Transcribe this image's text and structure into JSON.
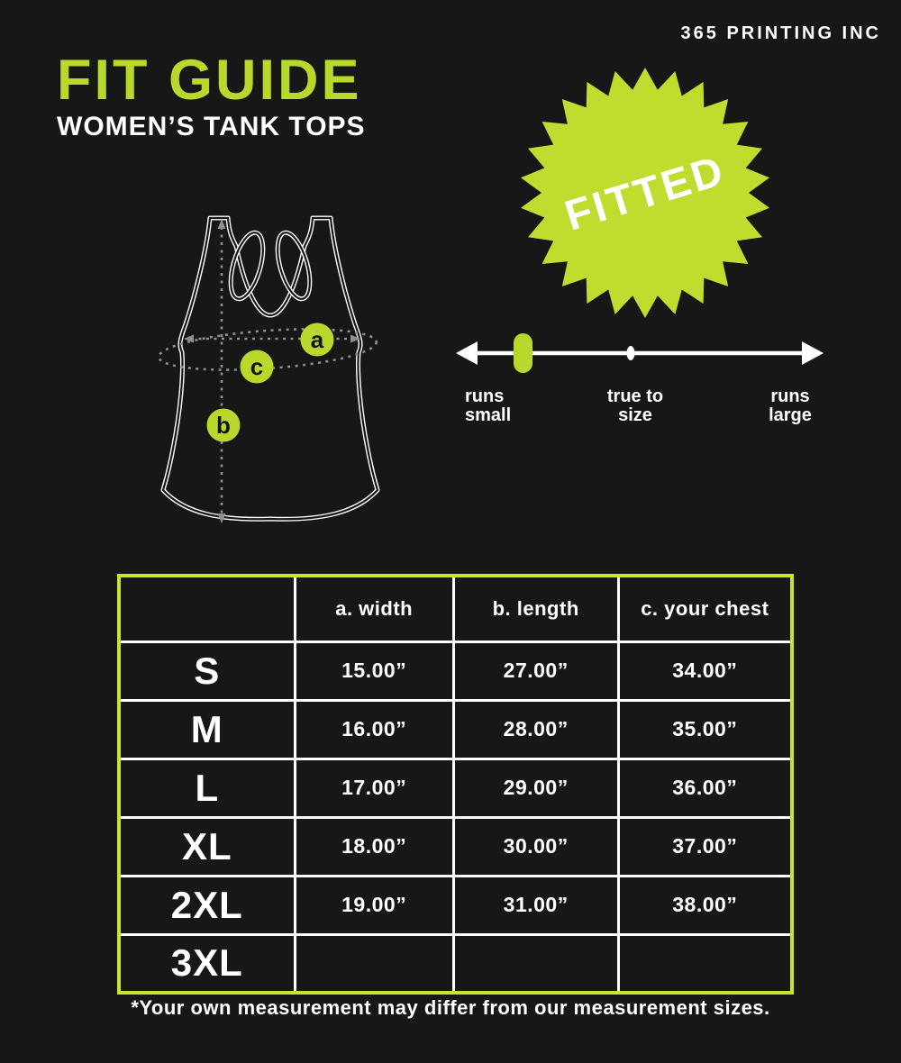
{
  "brand": "365 PRINTING INC",
  "title": "FIT GUIDE",
  "subtitle": "WOMEN’S TANK TOPS",
  "badge": {
    "label": "FITTED"
  },
  "diagram": {
    "markers": [
      "a",
      "b",
      "c"
    ],
    "marker_meanings": [
      "width",
      "length",
      "your chest"
    ]
  },
  "fit_scale": {
    "labels": {
      "left": [
        "runs",
        "small"
      ],
      "center": [
        "true to",
        "size"
      ],
      "right": [
        "runs",
        "large"
      ]
    },
    "indicator": "runs small"
  },
  "size_table": {
    "headers": [
      "",
      "a. width",
      "b. length",
      "c. your chest"
    ],
    "rows": [
      {
        "size": "S",
        "width": "15.00”",
        "length": "27.00”",
        "chest": "34.00”"
      },
      {
        "size": "M",
        "width": "16.00”",
        "length": "28.00”",
        "chest": "35.00”"
      },
      {
        "size": "L",
        "width": "17.00”",
        "length": "29.00”",
        "chest": "36.00”"
      },
      {
        "size": "XL",
        "width": "18.00”",
        "length": "30.00”",
        "chest": "37.00”"
      },
      {
        "size": "2XL",
        "width": "19.00”",
        "length": "31.00”",
        "chest": "38.00”"
      },
      {
        "size": "3XL",
        "width": "",
        "length": "",
        "chest": ""
      }
    ]
  },
  "footnote": "*Your own measurement may differ from our measurement sizes.",
  "colors": {
    "background": "#171717",
    "accent": "#b9d82c",
    "badge": "#c1dc2f",
    "table_border": "#c6e430",
    "dotted": "#8f8f8f",
    "text": "#ffffff"
  }
}
